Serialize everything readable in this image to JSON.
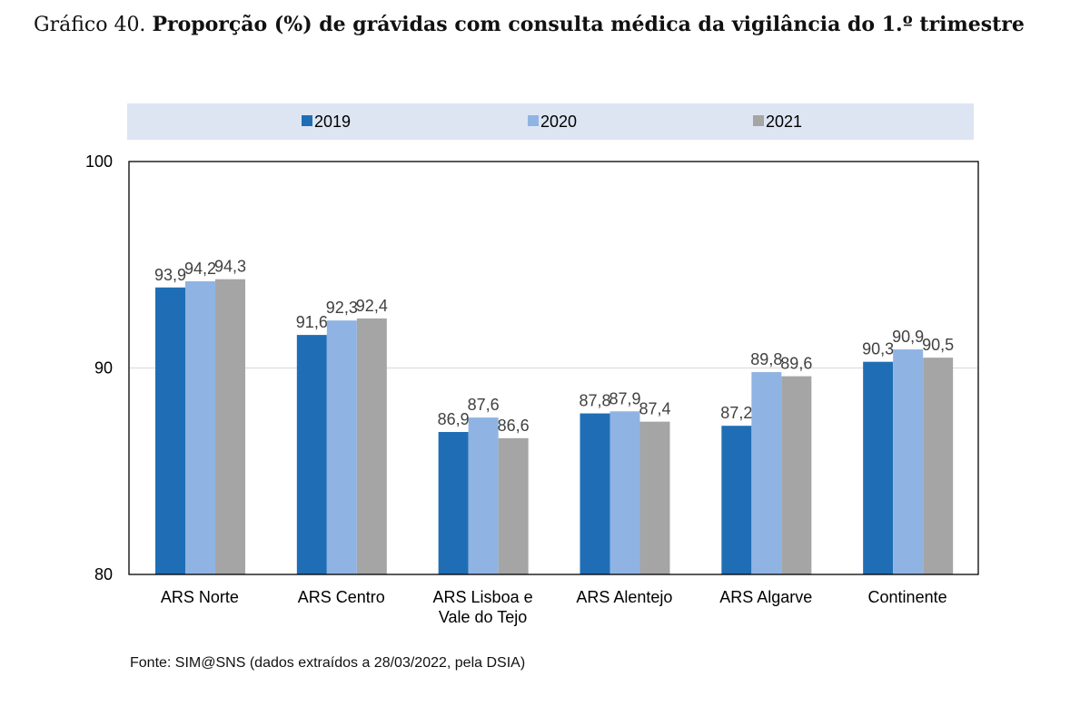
{
  "title": {
    "number": "Gráfico 40.",
    "text": "Proporção (%) de grávidas com consulta médica da vigilância do 1.º trimestre"
  },
  "source": "Fonte: SIM@SNS (dados extraídos a 28/03/2022, pela DSIA)",
  "chart_data": {
    "type": "bar",
    "categories": [
      [
        "ARS Norte"
      ],
      [
        "ARS Centro"
      ],
      [
        "ARS Lisboa e",
        "Vale do Tejo"
      ],
      [
        "ARS Alentejo"
      ],
      [
        "ARS Algarve"
      ],
      [
        "Continente"
      ]
    ],
    "series": [
      {
        "name": "2019",
        "color": "#1f6eb5",
        "values": [
          93.9,
          91.6,
          86.9,
          87.8,
          87.2,
          90.3
        ],
        "labels": [
          "93,9",
          "91,6",
          "86,9",
          "87,8",
          "87,2",
          "90,3"
        ]
      },
      {
        "name": "2020",
        "color": "#8fb4e3",
        "values": [
          94.2,
          92.3,
          87.6,
          87.9,
          89.8,
          90.9
        ],
        "labels": [
          "94,2",
          "92,3",
          "87,6",
          "87,9",
          "89,8",
          "90,9"
        ]
      },
      {
        "name": "2021",
        "color": "#a5a5a5",
        "values": [
          94.3,
          92.4,
          86.6,
          87.4,
          89.6,
          90.5
        ],
        "labels": [
          "94,3",
          "92,4",
          "86,6",
          "87,4",
          "89,6",
          "90,5"
        ]
      }
    ],
    "ylim": [
      80,
      100
    ],
    "yticks": [
      "80",
      "90",
      "100"
    ],
    "ytick_values": [
      80,
      90,
      100
    ],
    "grid": true,
    "legend_position": "top"
  }
}
